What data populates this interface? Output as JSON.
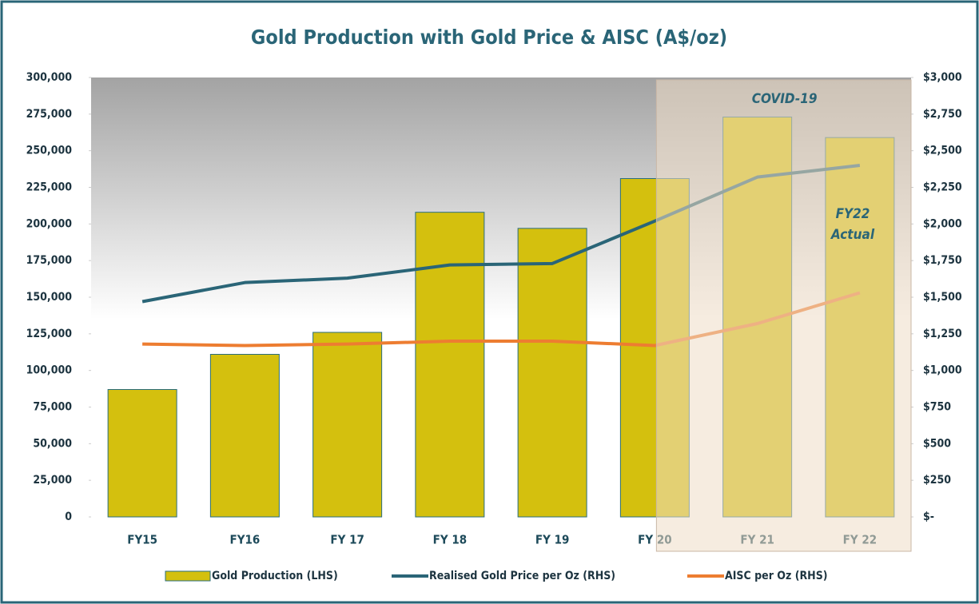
{
  "chart_data": {
    "type": "bar",
    "title": "Gold Production with Gold Price & AISC (A$/oz)",
    "categories": [
      "FY15",
      "FY16",
      "FY 17",
      "FY 18",
      "FY 19",
      "FY 20",
      "FY 21",
      "FY 22"
    ],
    "series": [
      {
        "name": "Gold Production (LHS)",
        "type": "bar",
        "color": "#d4c00e",
        "values": [
          87000,
          111000,
          126000,
          208000,
          197000,
          231000,
          273000,
          259000
        ]
      },
      {
        "name": "Realised Gold Price per Oz (RHS)",
        "type": "line",
        "axis": "y2",
        "color": "#2a6577",
        "values": [
          1470,
          1600,
          1630,
          1720,
          1730,
          2020,
          2320,
          2400
        ]
      },
      {
        "name": "AISC per Oz (RHS)",
        "type": "line",
        "axis": "y2",
        "color": "#ed7d31",
        "values": [
          1180,
          1170,
          1180,
          1200,
          1200,
          1170,
          1320,
          1530
        ]
      }
    ],
    "ylim": [
      0,
      300000
    ],
    "yticks": [
      0,
      {
        "value": 25000,
        "label": "25,000"
      },
      {
        "value": 50000,
        "label": "50,000"
      },
      {
        "value": 75000,
        "label": "75,000"
      },
      {
        "value": 100000,
        "label": "100,000"
      },
      {
        "value": 125000,
        "label": "125,000"
      },
      {
        "value": 150000,
        "label": "150,000"
      },
      {
        "value": 175000,
        "label": "175,000"
      },
      {
        "value": 200000,
        "label": "200,000"
      },
      {
        "value": 225000,
        "label": "225,000"
      },
      {
        "value": 250000,
        "label": "250,000"
      },
      {
        "value": 275000,
        "label": "275,000"
      },
      {
        "value": 300000,
        "label": "300,000"
      }
    ],
    "y2lim": [
      0,
      3000
    ],
    "y2ticks": [
      {
        "value": 0,
        "label": "$-"
      },
      {
        "value": 250,
        "label": "$250"
      },
      {
        "value": 500,
        "label": "$500"
      },
      {
        "value": 750,
        "label": "$750"
      },
      {
        "value": 1000,
        "label": "$1,000"
      },
      {
        "value": 1250,
        "label": "$1,250"
      },
      {
        "value": 1500,
        "label": "$1,500"
      },
      {
        "value": 1750,
        "label": "$1,750"
      },
      {
        "value": 2000,
        "label": "$2,000"
      },
      {
        "value": 2250,
        "label": "$2,250"
      },
      {
        "value": 2500,
        "label": "$2,500"
      },
      {
        "value": 2750,
        "label": "$2,750"
      },
      {
        "value": 3000,
        "label": "$3,000"
      }
    ],
    "annotations": [
      "COVID-19",
      "FY22",
      "Actual"
    ],
    "grid": false,
    "legend": "bottom"
  }
}
